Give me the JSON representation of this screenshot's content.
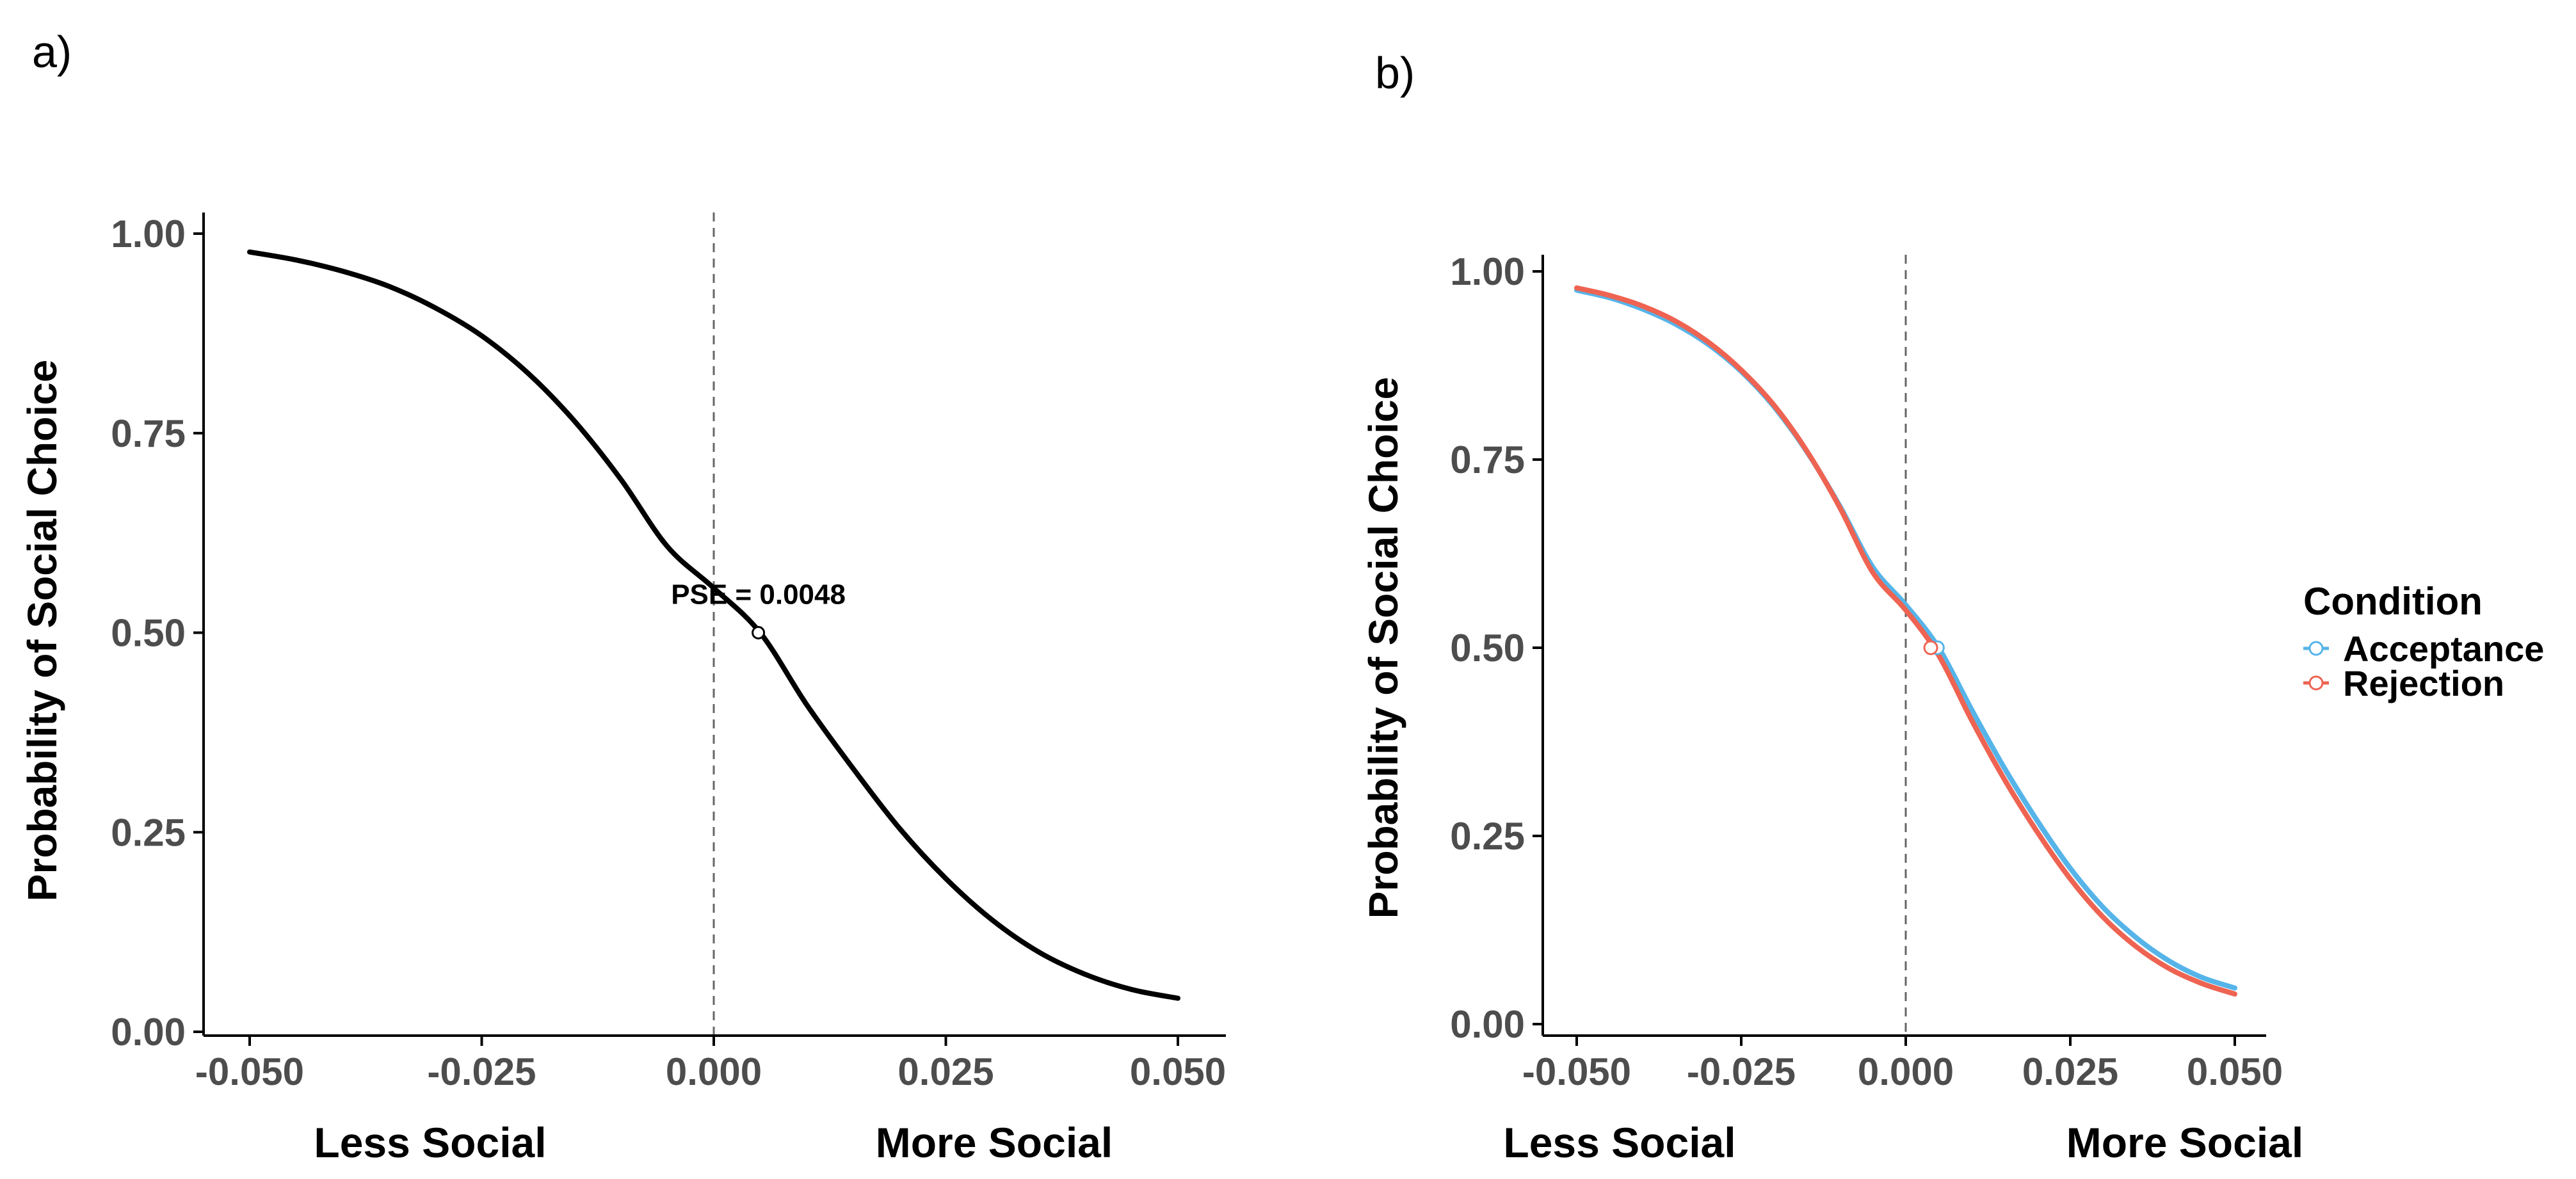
{
  "colors": {
    "acceptance": "#56B4E9",
    "rejection": "#EE6352",
    "curve": "#000000",
    "axis": "#000000",
    "tick_text": "#4d4d4d",
    "reference_line": "#666666"
  },
  "chart_data": [
    {
      "panel_label": "a)",
      "type": "line",
      "xlabel": "",
      "ylabel": "Probability of Social Choice",
      "xlim": [
        -0.05,
        0.05
      ],
      "ylim": [
        0,
        1
      ],
      "x_ticks": [
        -0.05,
        -0.025,
        0,
        0.025,
        0.05
      ],
      "x_tick_labels": [
        "-0.050",
        "-0.025",
        "0.000",
        "0.025",
        "0.050"
      ],
      "y_ticks": [
        0,
        0.25,
        0.5,
        0.75,
        1
      ],
      "y_tick_labels": [
        "0.00",
        "0.25",
        "0.50",
        "0.75",
        "1.00"
      ],
      "x_direction_labels": [
        "Less Social",
        "More Social"
      ],
      "reference_line_x": 0,
      "series": [
        {
          "x": [
            -0.05,
            -0.045,
            -0.04,
            -0.035,
            -0.03,
            -0.025,
            -0.02,
            -0.015,
            -0.01,
            -0.005,
            0,
            0.005,
            0.01,
            0.015,
            0.02,
            0.025,
            0.03,
            0.035,
            0.04,
            0.045,
            0.05
          ],
          "y": [
            0.977,
            0.967,
            0.953,
            0.934,
            0.907,
            0.872,
            0.825,
            0.765,
            0.692,
            0.608,
            0.556,
            0.5,
            0.41,
            0.33,
            0.255,
            0.192,
            0.14,
            0.1,
            0.072,
            0.053,
            0.042
          ]
        }
      ],
      "points": [
        {
          "x": 0.0048,
          "y": 0.5
        }
      ],
      "annotations": [
        {
          "text": "PSE = 0.0048",
          "x": 0.0048,
          "y": 0.5
        }
      ]
    },
    {
      "panel_label": "b)",
      "type": "line",
      "xlabel": "",
      "ylabel": "Probability of Social Choice",
      "xlim": [
        -0.05,
        0.05
      ],
      "ylim": [
        0,
        1
      ],
      "x_ticks": [
        -0.05,
        -0.025,
        0,
        0.025,
        0.05
      ],
      "x_tick_labels": [
        "-0.050",
        "-0.025",
        "0.000",
        "0.025",
        "0.050"
      ],
      "y_ticks": [
        0,
        0.25,
        0.5,
        0.75,
        1
      ],
      "y_tick_labels": [
        "0.00",
        "0.25",
        "0.50",
        "0.75",
        "1.00"
      ],
      "x_direction_labels": [
        "Less Social",
        "More Social"
      ],
      "reference_line_x": 0,
      "legend": {
        "title": "Condition",
        "position": "right"
      },
      "series": [
        {
          "name": "Acceptance",
          "color": "#56B4E9",
          "x": [
            -0.05,
            -0.045,
            -0.04,
            -0.035,
            -0.03,
            -0.025,
            -0.02,
            -0.015,
            -0.01,
            -0.005,
            0,
            0.005,
            0.01,
            0.015,
            0.02,
            0.025,
            0.03,
            0.035,
            0.04,
            0.045,
            0.05
          ],
          "y": [
            0.975,
            0.965,
            0.95,
            0.93,
            0.903,
            0.867,
            0.82,
            0.76,
            0.688,
            0.607,
            0.557,
            0.5,
            0.418,
            0.34,
            0.27,
            0.207,
            0.155,
            0.115,
            0.084,
            0.062,
            0.048
          ]
        },
        {
          "name": "Rejection",
          "color": "#EE6352",
          "x": [
            -0.05,
            -0.045,
            -0.04,
            -0.035,
            -0.03,
            -0.025,
            -0.02,
            -0.015,
            -0.01,
            -0.005,
            0,
            0.005,
            0.01,
            0.015,
            0.02,
            0.025,
            0.03,
            0.035,
            0.04,
            0.045,
            0.05
          ],
          "y": [
            0.978,
            0.968,
            0.954,
            0.934,
            0.906,
            0.869,
            0.822,
            0.761,
            0.686,
            0.6,
            0.55,
            0.49,
            0.404,
            0.325,
            0.255,
            0.193,
            0.142,
            0.103,
            0.074,
            0.054,
            0.04
          ]
        }
      ],
      "points": [
        {
          "series": "Acceptance",
          "x": 0.0048,
          "y": 0.5
        },
        {
          "series": "Rejection",
          "x": 0.0038,
          "y": 0.5
        }
      ]
    }
  ]
}
